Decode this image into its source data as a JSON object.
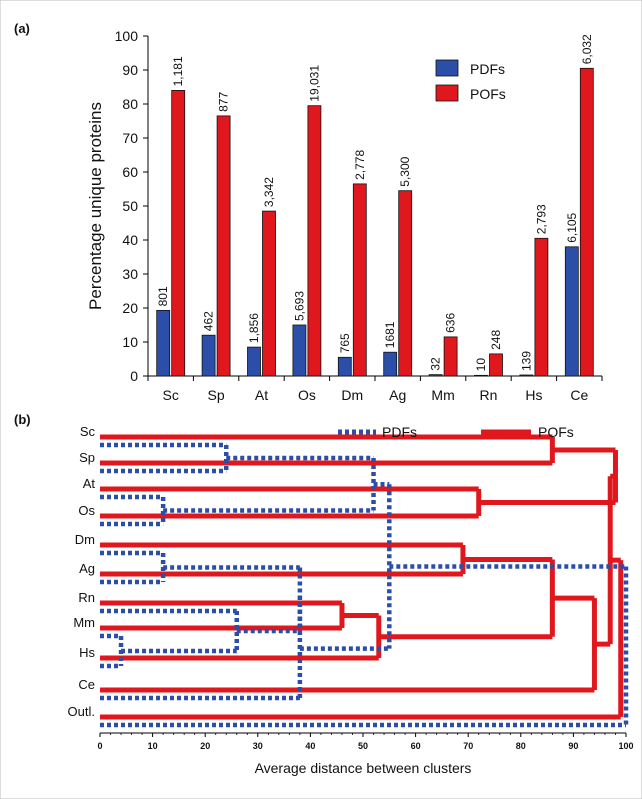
{
  "panel_a_label": "(a)",
  "panel_b_label": "(b)",
  "chart_data": [
    {
      "type": "bar",
      "categories": [
        "Sc",
        "Sp",
        "At",
        "Os",
        "Dm",
        "Ag",
        "Mm",
        "Rn",
        "Hs",
        "Ce"
      ],
      "ylabel": "Percentage unique proteins",
      "xlabel": "",
      "ylim": [
        0,
        100
      ],
      "yticks": [
        0,
        10,
        20,
        30,
        40,
        50,
        60,
        70,
        80,
        90,
        100
      ],
      "grid": false,
      "legend": "top-right",
      "series": [
        {
          "name": "PDFs",
          "color": "#2b4fa8",
          "values": [
            19.3,
            12,
            8.5,
            15,
            5.5,
            7,
            0.4,
            0.2,
            0.3,
            38
          ],
          "labels": [
            "801",
            "462",
            "1,856",
            "5,693",
            "765",
            "1681",
            "32",
            "10",
            "139",
            "6,105"
          ]
        },
        {
          "name": "POFs",
          "color": "#e0181e",
          "values": [
            84,
            76.5,
            48.5,
            79.5,
            56.5,
            54.5,
            11.5,
            6.5,
            40.5,
            90.5
          ],
          "labels": [
            "1,181",
            "877",
            "3,342",
            "19,031",
            "2,778",
            "5,300",
            "636",
            "248",
            "2,793",
            "6,032"
          ]
        }
      ]
    },
    {
      "type": "dendrogram",
      "leaves": [
        "Sc",
        "Sp",
        "At",
        "Os",
        "Dm",
        "Ag",
        "Rn",
        "Mm",
        "Hs",
        "Ce",
        "Outl."
      ],
      "xlabel": "Average distance between clusters",
      "xlim": [
        0,
        100
      ],
      "xticks": [
        0,
        10,
        20,
        30,
        40,
        50,
        60,
        70,
        80,
        90,
        100
      ],
      "legend": "top",
      "series": [
        {
          "name": "PDFs",
          "color": "#2b4fa8",
          "style": "dotted",
          "merges": [
            {
              "a": 0,
              "b": 1,
              "height": 24
            },
            {
              "a": 2,
              "b": 3,
              "height": 12
            },
            {
              "a": 11,
              "b": 12,
              "height": 52
            },
            {
              "a": 4,
              "b": 5,
              "height": 12
            },
            {
              "a": 7,
              "b": 8,
              "height": 4
            },
            {
              "a": 6,
              "b": 15,
              "height": 26
            },
            {
              "a": 14,
              "b": 16,
              "height": 38
            },
            {
              "a": 9,
              "b": 17,
              "height": 38
            },
            {
              "a": 13,
              "b": 18,
              "height": 55
            },
            {
              "a": 19,
              "b": 10,
              "height": 100
            }
          ]
        },
        {
          "name": "POFs",
          "color": "#e0181e",
          "style": "solid",
          "merges": [
            {
              "a": 0,
              "b": 1,
              "height": 86
            },
            {
              "a": 2,
              "b": 3,
              "height": 72
            },
            {
              "a": 4,
              "b": 5,
              "height": 69
            },
            {
              "a": 6,
              "b": 7,
              "height": 46
            },
            {
              "a": 14,
              "b": 8,
              "height": 53
            },
            {
              "a": 13,
              "b": 15,
              "height": 86
            },
            {
              "a": 16,
              "b": 9,
              "height": 94
            },
            {
              "a": 11,
              "b": 12,
              "height": 98
            },
            {
              "a": 18,
              "b": 17,
              "height": 97
            },
            {
              "a": 19,
              "b": 10,
              "height": 99
            }
          ]
        }
      ]
    }
  ]
}
